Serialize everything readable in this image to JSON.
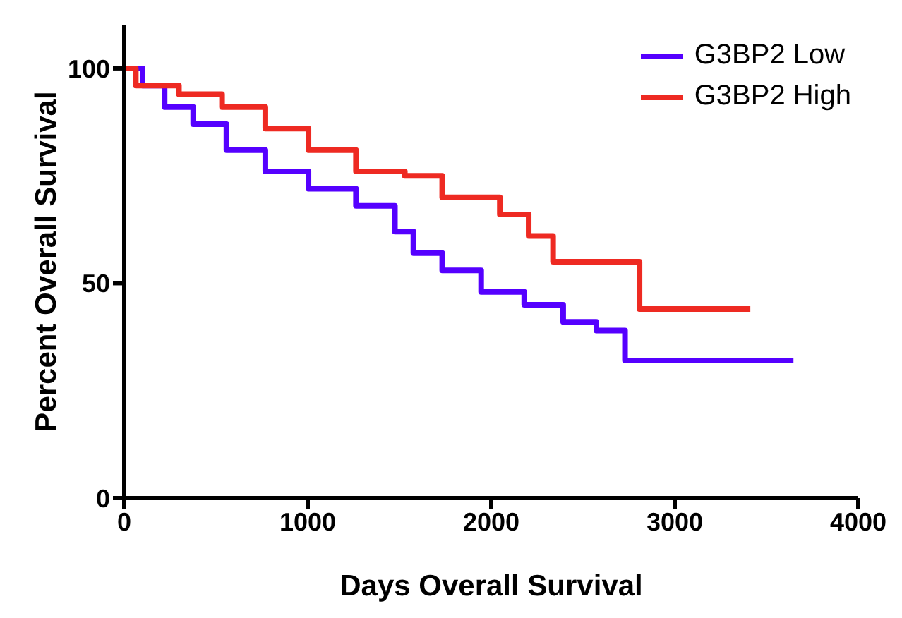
{
  "chart_data": {
    "type": "step",
    "xlabel": "Days Overall Survival",
    "ylabel": "Percent Overall Survival",
    "xlim": [
      0,
      4000
    ],
    "xticks": [
      0,
      1000,
      2000,
      3000,
      4000
    ],
    "ylim": [
      0,
      110
    ],
    "yticks": [
      0,
      50,
      100
    ],
    "grid": false,
    "legend": "top right",
    "marker": "none",
    "line_style": "solid",
    "series": [
      {
        "name": "G3BP2 Low",
        "color": "#5500ff",
        "x": [
          0,
          100,
          220,
          376,
          557,
          769,
          1004,
          1263,
          1475,
          1576,
          1733,
          1945,
          2180,
          2392,
          2573,
          2729,
          3647
        ],
        "values": [
          100,
          96,
          91,
          87,
          81,
          76,
          72,
          68,
          62,
          57,
          53,
          48,
          45,
          41,
          39,
          32,
          32
        ]
      },
      {
        "name": "G3BP2 High",
        "color": "#ee2a22",
        "x": [
          0,
          63,
          298,
          533,
          769,
          1004,
          1263,
          1529,
          1733,
          2047,
          2204,
          2337,
          2808,
          3412
        ],
        "values": [
          100,
          96,
          94,
          91,
          86,
          81,
          76,
          75,
          70,
          66,
          61,
          55,
          44,
          44
        ]
      }
    ]
  }
}
